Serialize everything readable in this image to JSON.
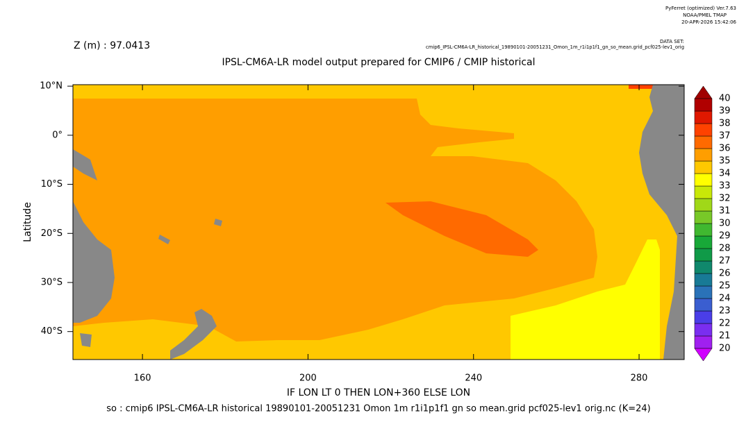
{
  "chart_data": {
    "type": "filled-contour",
    "software": [
      "PyFerret (optimized) Ver.7.63",
      "NOAA/PMEL TMAP",
      "20-APR-2026 15:42:06"
    ],
    "dataset_label": "DATA SET:",
    "dataset": "cmip6_IPSL-CM6A-LR_historical_19890101-20051231_Omon_1m_r1i1p1f1_gn_so_mean.grid_pcf025-lev1_orig",
    "depth_label": "Z (m) : 97.0413",
    "title": "IPSL-CM6A-LR model output prepared for CMIP6 / CMIP historical",
    "xlabel": "IF LON LT 0 THEN LON+360 ELSE LON",
    "ylabel": "Latitude",
    "footer": "so : cmip6 IPSL-CM6A-LR historical 19890101-20051231 Omon 1m r1i1p1f1 gn so mean.grid pcf025-lev1 orig.nc (K=24)",
    "xlim": [
      143.2,
      290.9
    ],
    "ylim": [
      -45.7,
      10.3
    ],
    "xticks": [
      160,
      200,
      240,
      280
    ],
    "yticks": [
      {
        "value": 10,
        "label": "10°N"
      },
      {
        "value": 0,
        "label": "0°"
      },
      {
        "value": -10,
        "label": "10°S"
      },
      {
        "value": -20,
        "label": "20°S"
      },
      {
        "value": -30,
        "label": "30°S"
      },
      {
        "value": -40,
        "label": "40°S"
      }
    ],
    "colorbar": {
      "levels": [
        20,
        21,
        22,
        23,
        24,
        25,
        26,
        27,
        28,
        29,
        30,
        31,
        32,
        33,
        34,
        35,
        36,
        37,
        38,
        39,
        40
      ],
      "colors": [
        "#a020f0",
        "#7a2ef0",
        "#4a3ee8",
        "#3a5ed0",
        "#2a72b8",
        "#187a96",
        "#10886c",
        "#109a48",
        "#18a838",
        "#40b830",
        "#78c828",
        "#a0d818",
        "#c8e808",
        "#ffff00",
        "#ffc800",
        "#ff9e00",
        "#ff6a00",
        "#ff4200",
        "#e01800",
        "#b00000"
      ],
      "over_color": "#a00000",
      "under_color": "#d000ff"
    }
  }
}
